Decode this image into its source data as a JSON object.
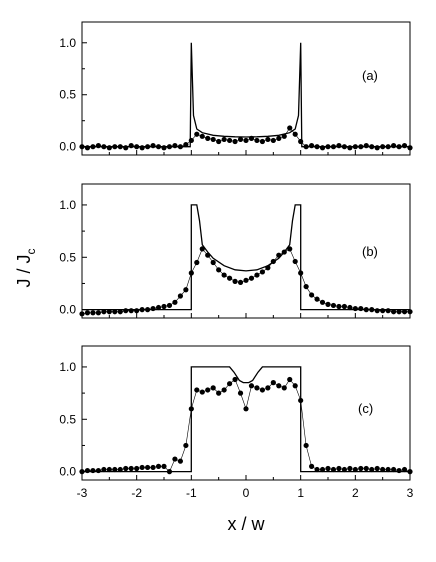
{
  "chart_data": [
    {
      "type": "line",
      "panel_label": "(a)",
      "xlim": [
        -3,
        3
      ],
      "ylim": [
        -0.08,
        1.2
      ],
      "yticks": [
        0.0,
        0.5,
        1.0
      ],
      "ytick_labels": [
        "0.0",
        "0.5",
        "1.0"
      ],
      "series": [
        {
          "style": "solid line",
          "x": [
            -3.0,
            -1.02,
            -1.0,
            -0.96,
            -0.9,
            -0.8,
            -0.6,
            -0.4,
            -0.2,
            0.0,
            0.2,
            0.4,
            0.6,
            0.8,
            0.9,
            0.96,
            1.0,
            1.02,
            3.0
          ],
          "y": [
            0.0,
            0.0,
            1.0,
            0.3,
            0.17,
            0.135,
            0.11,
            0.1,
            0.095,
            0.093,
            0.095,
            0.1,
            0.11,
            0.135,
            0.17,
            0.3,
            1.0,
            0.0,
            0.0
          ]
        },
        {
          "style": "filled circles with thin line",
          "x": [
            -3.0,
            -2.9,
            -2.8,
            -2.7,
            -2.6,
            -2.5,
            -2.4,
            -2.3,
            -2.2,
            -2.1,
            -2.0,
            -1.9,
            -1.8,
            -1.7,
            -1.6,
            -1.5,
            -1.4,
            -1.3,
            -1.2,
            -1.1,
            -1.0,
            -0.9,
            -0.8,
            -0.7,
            -0.6,
            -0.5,
            -0.4,
            -0.3,
            -0.2,
            -0.1,
            0.0,
            0.1,
            0.2,
            0.3,
            0.4,
            0.5,
            0.6,
            0.7,
            0.8,
            0.9,
            1.0,
            1.1,
            1.2,
            1.3,
            1.4,
            1.5,
            1.6,
            1.7,
            1.8,
            1.9,
            2.0,
            2.1,
            2.2,
            2.3,
            2.4,
            2.5,
            2.6,
            2.7,
            2.8,
            2.9,
            3.0
          ],
          "y": [
            0.0,
            -0.01,
            0.0,
            0.01,
            0.0,
            -0.01,
            0.0,
            0.0,
            -0.01,
            0.01,
            0.0,
            -0.01,
            0.0,
            0.01,
            0.0,
            -0.01,
            0.0,
            0.01,
            0.0,
            0.02,
            0.06,
            0.12,
            0.1,
            0.08,
            0.07,
            0.05,
            0.07,
            0.06,
            0.05,
            0.07,
            0.06,
            0.08,
            0.06,
            0.05,
            0.07,
            0.06,
            0.08,
            0.1,
            0.18,
            0.12,
            0.05,
            0.0,
            0.01,
            0.0,
            -0.01,
            0.0,
            0.0,
            0.01,
            0.0,
            -0.01,
            0.0,
            0.0,
            0.01,
            0.0,
            -0.01,
            0.0,
            0.0,
            0.01,
            0.0,
            0.01,
            -0.01
          ]
        }
      ]
    },
    {
      "type": "line",
      "panel_label": "(b)",
      "xlim": [
        -3,
        3
      ],
      "ylim": [
        -0.08,
        1.2
      ],
      "yticks": [
        0.0,
        0.5,
        1.0
      ],
      "ytick_labels": [
        "0.0",
        "0.5",
        "1.0"
      ],
      "series": [
        {
          "style": "solid line",
          "x": [
            -3.0,
            -1.0,
            -1.0,
            -0.9,
            -0.85,
            -0.8,
            -0.7,
            -0.6,
            -0.4,
            -0.2,
            0.0,
            0.2,
            0.4,
            0.6,
            0.7,
            0.8,
            0.85,
            0.9,
            1.0,
            1.0,
            3.0
          ],
          "y": [
            0.0,
            0.0,
            1.0,
            1.0,
            0.85,
            0.62,
            0.55,
            0.49,
            0.42,
            0.38,
            0.37,
            0.38,
            0.42,
            0.49,
            0.55,
            0.62,
            0.85,
            1.0,
            1.0,
            0.0,
            0.0
          ],
          "color": "#000000"
        },
        {
          "style": "filled circles with thin line",
          "x": [
            -3.0,
            -2.9,
            -2.8,
            -2.7,
            -2.6,
            -2.5,
            -2.4,
            -2.3,
            -2.2,
            -2.1,
            -2.0,
            -1.9,
            -1.8,
            -1.7,
            -1.6,
            -1.5,
            -1.4,
            -1.3,
            -1.2,
            -1.1,
            -1.0,
            -0.9,
            -0.8,
            -0.7,
            -0.6,
            -0.5,
            -0.4,
            -0.3,
            -0.2,
            -0.1,
            0.0,
            0.1,
            0.2,
            0.3,
            0.4,
            0.5,
            0.6,
            0.7,
            0.8,
            0.9,
            1.0,
            1.1,
            1.2,
            1.3,
            1.4,
            1.5,
            1.6,
            1.7,
            1.8,
            1.9,
            2.0,
            2.1,
            2.2,
            2.3,
            2.4,
            2.5,
            2.6,
            2.7,
            2.8,
            2.9,
            3.0
          ],
          "y": [
            -0.04,
            -0.03,
            -0.03,
            -0.03,
            -0.02,
            -0.02,
            -0.02,
            -0.02,
            -0.01,
            -0.01,
            -0.01,
            0.0,
            0.0,
            0.01,
            0.02,
            0.03,
            0.04,
            0.07,
            0.13,
            0.19,
            0.35,
            0.45,
            0.58,
            0.52,
            0.45,
            0.38,
            0.33,
            0.3,
            0.27,
            0.26,
            0.28,
            0.3,
            0.33,
            0.36,
            0.4,
            0.46,
            0.52,
            0.55,
            0.58,
            0.46,
            0.35,
            0.22,
            0.14,
            0.1,
            0.07,
            0.05,
            0.04,
            0.03,
            0.03,
            0.02,
            0.01,
            0.01,
            0.0,
            0.0,
            -0.01,
            -0.01,
            -0.01,
            -0.02,
            -0.02,
            -0.02,
            -0.02
          ]
        }
      ]
    },
    {
      "type": "line",
      "panel_label": "(c)",
      "xlim": [
        -3,
        3
      ],
      "ylim": [
        -0.08,
        1.2
      ],
      "yticks": [
        0.0,
        0.5,
        1.0
      ],
      "ytick_labels": [
        "0.0",
        "0.5",
        "1.0"
      ],
      "xticks": [
        -3,
        -2,
        -1,
        0,
        1,
        2,
        3
      ],
      "xtick_labels": [
        "-3",
        "-2",
        "-1",
        "0",
        "1",
        "2",
        "3"
      ],
      "xlabel": "x / w",
      "series": [
        {
          "style": "solid line",
          "x": [
            -3.0,
            -1.0,
            -1.0,
            -0.3,
            -0.22,
            -0.12,
            -0.05,
            0.05,
            0.12,
            0.22,
            0.3,
            1.0,
            1.0,
            3.0
          ],
          "y": [
            0.0,
            0.0,
            1.0,
            1.0,
            0.95,
            0.87,
            0.85,
            0.85,
            0.87,
            0.95,
            1.0,
            1.0,
            0.0,
            0.0
          ]
        },
        {
          "style": "filled circles with thin line",
          "x": [
            -3.0,
            -2.9,
            -2.8,
            -2.7,
            -2.6,
            -2.5,
            -2.4,
            -2.3,
            -2.2,
            -2.1,
            -2.0,
            -1.9,
            -1.8,
            -1.7,
            -1.6,
            -1.5,
            -1.4,
            -1.3,
            -1.2,
            -1.1,
            -1.0,
            -0.9,
            -0.8,
            -0.7,
            -0.6,
            -0.5,
            -0.4,
            -0.3,
            -0.2,
            -0.1,
            0.0,
            0.1,
            0.2,
            0.3,
            0.4,
            0.5,
            0.6,
            0.7,
            0.8,
            0.9,
            1.0,
            1.1,
            1.2,
            1.3,
            1.4,
            1.5,
            1.6,
            1.7,
            1.8,
            1.9,
            2.0,
            2.1,
            2.2,
            2.3,
            2.4,
            2.5,
            2.6,
            2.7,
            2.8,
            2.9,
            3.0
          ],
          "y": [
            0.0,
            0.01,
            0.01,
            0.01,
            0.02,
            0.02,
            0.02,
            0.02,
            0.03,
            0.03,
            0.03,
            0.04,
            0.04,
            0.04,
            0.05,
            0.05,
            0.0,
            0.12,
            0.1,
            0.25,
            0.6,
            0.78,
            0.76,
            0.78,
            0.8,
            0.75,
            0.78,
            0.84,
            0.88,
            0.75,
            0.6,
            0.82,
            0.8,
            0.78,
            0.8,
            0.85,
            0.82,
            0.8,
            0.88,
            0.82,
            0.68,
            0.25,
            0.05,
            0.02,
            0.02,
            0.03,
            0.02,
            0.03,
            0.02,
            0.03,
            0.02,
            0.03,
            0.03,
            0.02,
            0.03,
            0.02,
            0.02,
            0.02,
            0.01,
            0.02,
            0.0
          ]
        }
      ]
    }
  ],
  "figure": {
    "ylabel": "J / J",
    "ylabel_subscript": "c",
    "xlabel": "x / w"
  }
}
